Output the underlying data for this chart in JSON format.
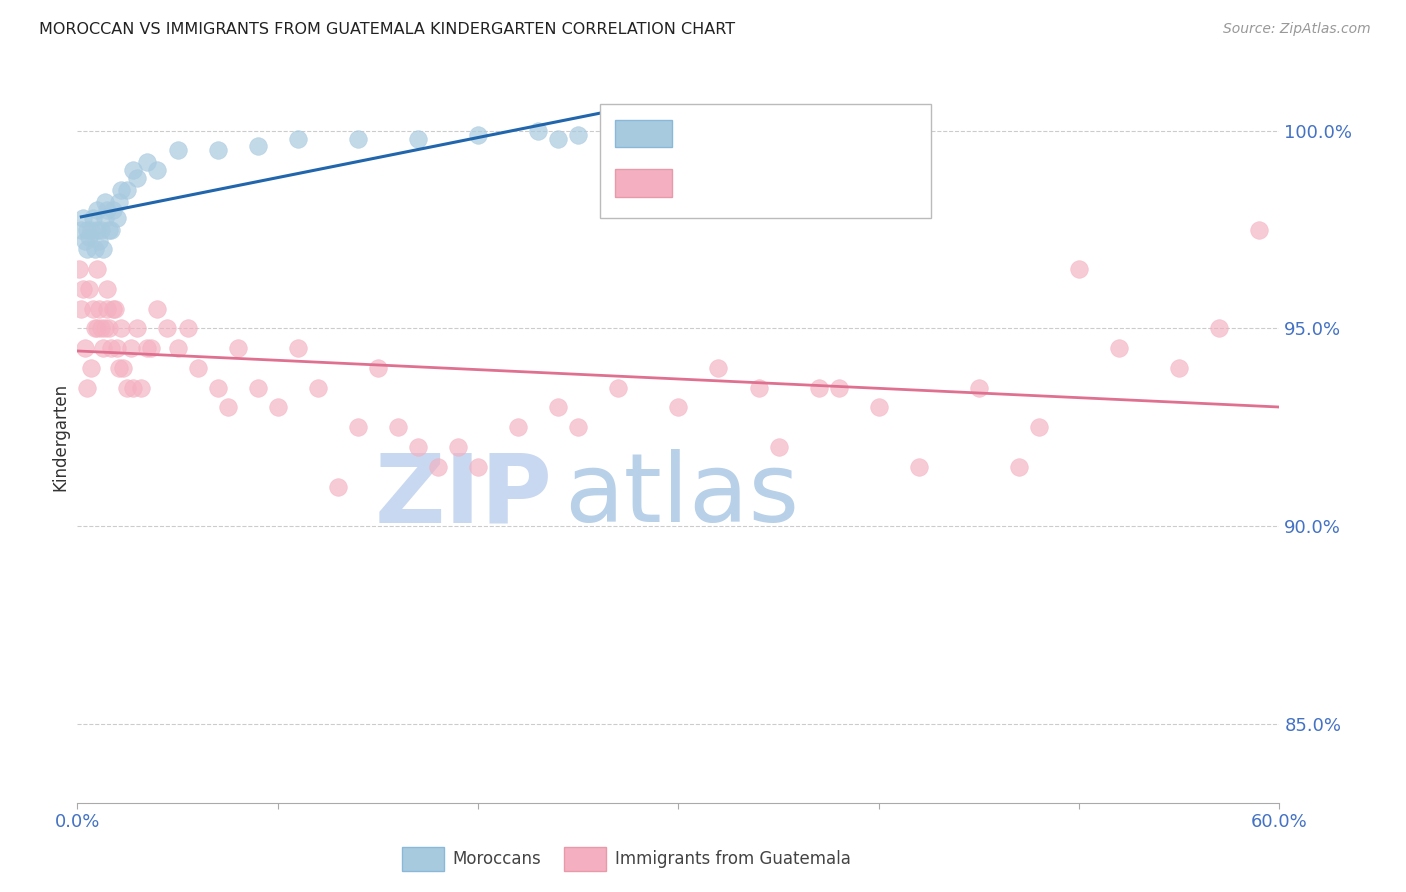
{
  "title": "MOROCCAN VS IMMIGRANTS FROM GUATEMALA KINDERGARTEN CORRELATION CHART",
  "source": "Source: ZipAtlas.com",
  "ylabel": "Kindergarten",
  "y_ticks": [
    85.0,
    90.0,
    95.0,
    100.0
  ],
  "x_range": [
    0.0,
    60.0
  ],
  "y_range": [
    83.0,
    101.5
  ],
  "blue_scatter_color": "#a8cadf",
  "blue_scatter_edge": "#a8cadf",
  "pink_scatter_color": "#f4b0c0",
  "pink_scatter_edge": "#f4b0c0",
  "blue_line_color": "#2166ac",
  "pink_line_color": "#e07090",
  "watermark_zip_color": "#c8d8f0",
  "watermark_atlas_color": "#b8d0e8",
  "title_color": "#222222",
  "axis_tick_color": "#4472c4",
  "legend_r_blue_color": "#4472c4",
  "legend_n_blue_color": "#33aa33",
  "legend_r_pink_color": "#e05070",
  "legend_n_pink_color": "#33aa33",
  "grid_color": "#cccccc",
  "blue_x": [
    0.2,
    0.3,
    0.4,
    0.5,
    0.5,
    0.6,
    0.7,
    0.8,
    0.9,
    1.0,
    1.0,
    1.1,
    1.2,
    1.3,
    1.4,
    1.4,
    1.5,
    1.6,
    1.7,
    1.8,
    2.0,
    2.1,
    2.2,
    2.5,
    2.8,
    3.0,
    3.5,
    4.0,
    5.0,
    7.0,
    9.0,
    11.0,
    14.0,
    17.0,
    20.0,
    23.0,
    24.0,
    25.0,
    27.0
  ],
  "blue_y": [
    97.5,
    97.8,
    97.2,
    97.0,
    97.5,
    97.3,
    97.5,
    97.8,
    97.0,
    97.5,
    98.0,
    97.2,
    97.5,
    97.0,
    97.8,
    98.2,
    98.0,
    97.5,
    97.5,
    98.0,
    97.8,
    98.2,
    98.5,
    98.5,
    99.0,
    98.8,
    99.2,
    99.0,
    99.5,
    99.5,
    99.6,
    99.8,
    99.8,
    99.8,
    99.9,
    100.0,
    99.8,
    99.9,
    99.5
  ],
  "pink_x": [
    0.1,
    0.2,
    0.3,
    0.4,
    0.5,
    0.6,
    0.7,
    0.8,
    0.9,
    1.0,
    1.0,
    1.1,
    1.2,
    1.3,
    1.4,
    1.5,
    1.5,
    1.6,
    1.7,
    1.8,
    1.9,
    2.0,
    2.1,
    2.2,
    2.3,
    2.5,
    2.7,
    2.8,
    3.0,
    3.2,
    3.5,
    3.7,
    4.0,
    4.5,
    5.0,
    5.5,
    6.0,
    7.0,
    7.5,
    8.0,
    9.0,
    10.0,
    11.0,
    12.0,
    13.0,
    14.0,
    15.0,
    16.0,
    17.0,
    18.0,
    19.0,
    20.0,
    22.0,
    24.0,
    25.0,
    27.0,
    30.0,
    32.0,
    34.0,
    35.0,
    37.0,
    38.0,
    40.0,
    42.0,
    45.0,
    47.0,
    48.0,
    50.0,
    52.0,
    55.0,
    57.0,
    59.0
  ],
  "pink_y": [
    96.5,
    95.5,
    96.0,
    94.5,
    93.5,
    96.0,
    94.0,
    95.5,
    95.0,
    96.5,
    95.0,
    95.5,
    95.0,
    94.5,
    95.0,
    96.0,
    95.5,
    95.0,
    94.5,
    95.5,
    95.5,
    94.5,
    94.0,
    95.0,
    94.0,
    93.5,
    94.5,
    93.5,
    95.0,
    93.5,
    94.5,
    94.5,
    95.5,
    95.0,
    94.5,
    95.0,
    94.0,
    93.5,
    93.0,
    94.5,
    93.5,
    93.0,
    94.5,
    93.5,
    91.0,
    92.5,
    94.0,
    92.5,
    92.0,
    91.5,
    92.0,
    91.5,
    92.5,
    93.0,
    92.5,
    93.5,
    93.0,
    94.0,
    93.5,
    92.0,
    93.5,
    93.5,
    93.0,
    91.5,
    93.5,
    91.5,
    92.5,
    96.5,
    94.5,
    94.0,
    95.0,
    97.5
  ]
}
